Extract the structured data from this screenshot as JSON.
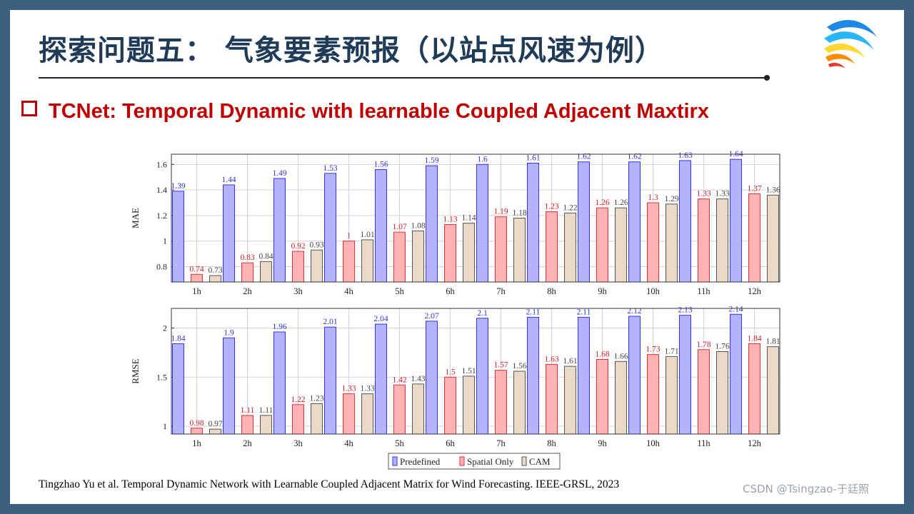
{
  "slide": {
    "title": "探索问题五： 气象要素预报（以站点风速为例）",
    "bullet": "TCNet: Temporal Dynamic with learnable Coupled Adjacent Maxtirx",
    "citation": "Tingzhao Yu et al. Temporal Dynamic Network with Learnable Coupled Adjacent Matrix for Wind Forecasting. IEEE-GRSL, 2023",
    "watermark": "CSDN @Tsingzao-于廷照",
    "logo_icon": "colorful-swoosh-logo-icon",
    "colors": {
      "background": "#3d5f7e",
      "title": "#1f3b57",
      "bullet": "#c00000"
    }
  },
  "chart_data": [
    {
      "type": "bar",
      "ylabel": "MAE",
      "categories": [
        "1h",
        "2h",
        "3h",
        "4h",
        "5h",
        "6h",
        "7h",
        "8h",
        "9h",
        "10h",
        "11h",
        "12h"
      ],
      "ylim": [
        0.68,
        1.68
      ],
      "yticks": [
        "0.8",
        "1",
        "1.2",
        "1.4",
        "1.6"
      ],
      "grid": true,
      "series": [
        {
          "name": "Predefined",
          "color": "#b3b3ff",
          "stroke": "#3333ee",
          "label_color": "#3333cc",
          "values": [
            1.39,
            1.44,
            1.49,
            1.53,
            1.56,
            1.59,
            1.6,
            1.61,
            1.62,
            1.62,
            1.63,
            1.64
          ]
        },
        {
          "name": "Spatial Only",
          "color": "#ffb3b3",
          "stroke": "#e0303a",
          "label_color": "#d01c28",
          "values": [
            0.74,
            0.83,
            0.92,
            1,
            1.07,
            1.13,
            1.19,
            1.23,
            1.26,
            1.3,
            1.33,
            1.37
          ]
        },
        {
          "name": "CAM",
          "color": "#ead9c6",
          "stroke": "#555555",
          "label_color": "#444444",
          "values": [
            0.73,
            0.84,
            0.93,
            1.01,
            1.08,
            1.14,
            1.18,
            1.22,
            1.26,
            1.29,
            1.33,
            1.36
          ]
        }
      ]
    },
    {
      "type": "bar",
      "ylabel": "RMSE",
      "categories": [
        "1h",
        "2h",
        "3h",
        "4h",
        "5h",
        "6h",
        "7h",
        "8h",
        "9h",
        "10h",
        "11h",
        "12h"
      ],
      "ylim": [
        0.92,
        2.2
      ],
      "yticks": [
        "1",
        "1.5",
        "2"
      ],
      "grid": true,
      "legend": "bottom-center",
      "series": [
        {
          "name": "Predefined",
          "color": "#b3b3ff",
          "stroke": "#3333ee",
          "label_color": "#3333cc",
          "values": [
            1.84,
            1.9,
            1.96,
            2.01,
            2.04,
            2.07,
            2.1,
            2.11,
            2.11,
            2.12,
            2.13,
            2.14
          ]
        },
        {
          "name": "Spatial Only",
          "color": "#ffb3b3",
          "stroke": "#e0303a",
          "label_color": "#d01c28",
          "values": [
            0.98,
            1.11,
            1.22,
            1.33,
            1.42,
            1.5,
            1.57,
            1.63,
            1.68,
            1.73,
            1.78,
            1.84
          ]
        },
        {
          "name": "CAM",
          "color": "#ead9c6",
          "stroke": "#555555",
          "label_color": "#444444",
          "values": [
            0.97,
            1.11,
            1.23,
            1.33,
            1.43,
            1.51,
            1.56,
            1.61,
            1.66,
            1.71,
            1.76,
            1.81
          ]
        }
      ]
    }
  ]
}
